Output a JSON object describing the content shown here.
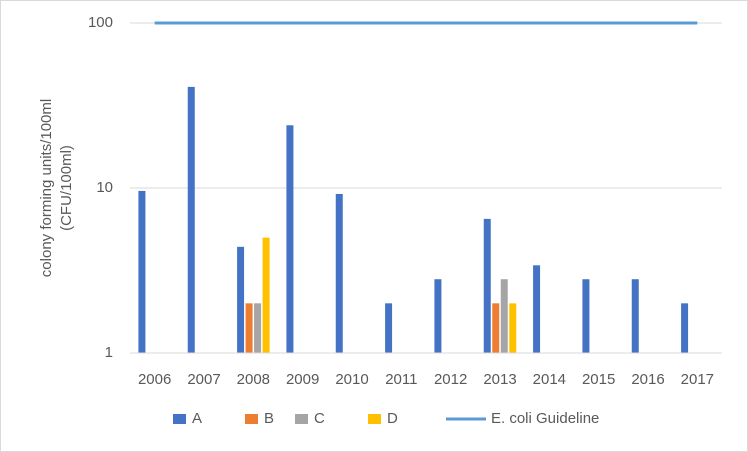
{
  "chart_data": {
    "type": "bar",
    "ylabel": [
      "colony forming units/100ml",
      "(CFU/100ml)"
    ],
    "categories": [
      "2006",
      "2007",
      "2008",
      "2009",
      "2010",
      "2011",
      "2012",
      "2013",
      "2014",
      "2015",
      "2016",
      "2017"
    ],
    "series": [
      {
        "name": "A",
        "color": "#4472c4",
        "values": [
          9.6,
          41,
          4.4,
          24,
          9.2,
          2,
          2.8,
          6.5,
          3.4,
          2.8,
          2.8,
          2
        ]
      },
      {
        "name": "B",
        "color": "#ed7d31",
        "values": [
          null,
          null,
          2,
          null,
          null,
          null,
          null,
          2,
          null,
          null,
          null,
          null
        ]
      },
      {
        "name": "C",
        "color": "#a5a5a5",
        "values": [
          null,
          null,
          2,
          null,
          null,
          null,
          null,
          2.8,
          null,
          null,
          null,
          null
        ]
      },
      {
        "name": "D",
        "color": "#ffc000",
        "values": [
          null,
          null,
          5,
          null,
          null,
          null,
          null,
          2,
          null,
          null,
          null,
          null
        ]
      },
      {
        "name": "E. coli Guideline",
        "color": "#5b9bd5",
        "type": "line",
        "values": [
          100,
          100,
          100,
          100,
          100,
          100,
          100,
          100,
          100,
          100,
          100,
          100
        ]
      }
    ],
    "ylim": [
      1,
      100
    ],
    "yticks": [
      1,
      10,
      100
    ],
    "log_y": true,
    "grid": true,
    "legend": "bottom"
  }
}
